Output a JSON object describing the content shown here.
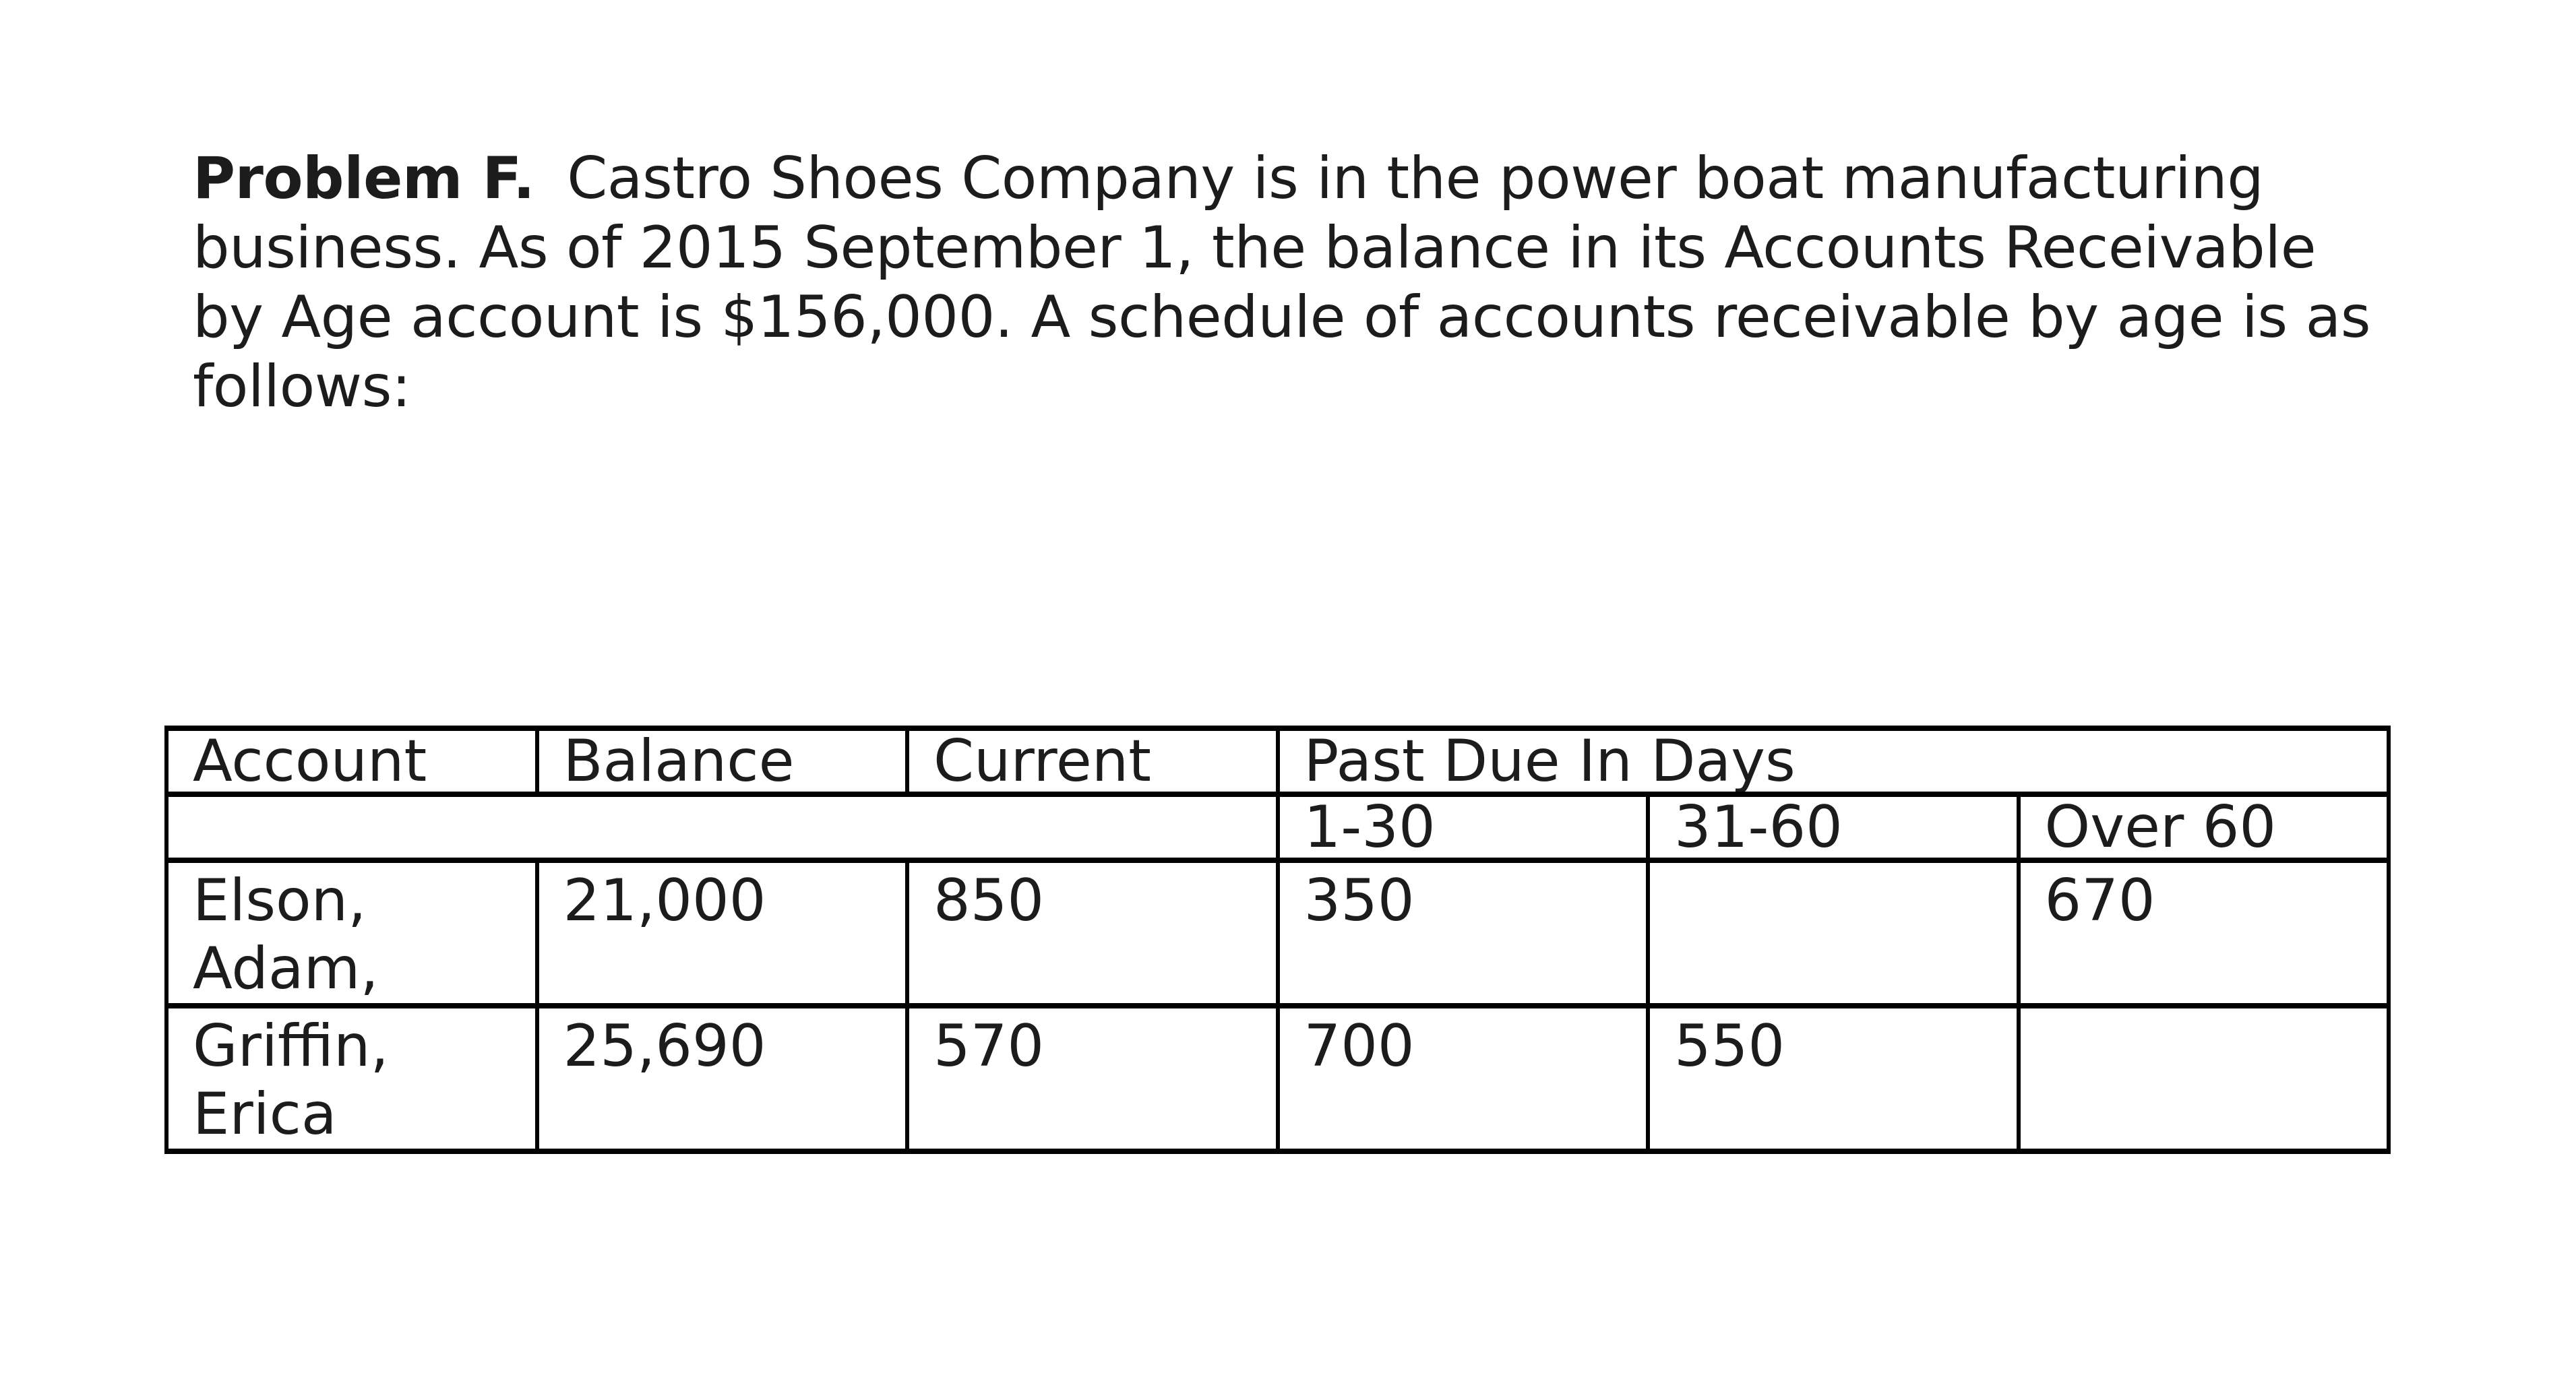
{
  "page": {
    "background": "#ffffff",
    "text_color": "#1c1c1c",
    "border_color": "#000000"
  },
  "problem": {
    "label": "Problem F.",
    "lines": [
      "Castro Shoes Company is in the power boat manufacturing",
      "business. As of 2015 September 1, the balance in its Accounts Receivable",
      "by Age account is $156,000. A schedule of accounts receivable by age is as",
      "follows:"
    ]
  },
  "table": {
    "headers": {
      "account": "Account",
      "balance": "Balance",
      "current": "Current",
      "past_due": "Past Due In Days"
    },
    "age_buckets": [
      "1-30",
      "31-60",
      "Over 60"
    ],
    "rows": [
      {
        "account_lines": [
          "Elson,",
          "Adam,"
        ],
        "balance": "21,000",
        "current": "850",
        "days_1_30": "350",
        "days_31_60": "",
        "over_60": "670"
      },
      {
        "account_lines": [
          "Griffin,",
          "Erica"
        ],
        "balance": "25,690",
        "current": "570",
        "days_1_30": "700",
        "days_31_60": "550",
        "over_60": ""
      }
    ]
  }
}
